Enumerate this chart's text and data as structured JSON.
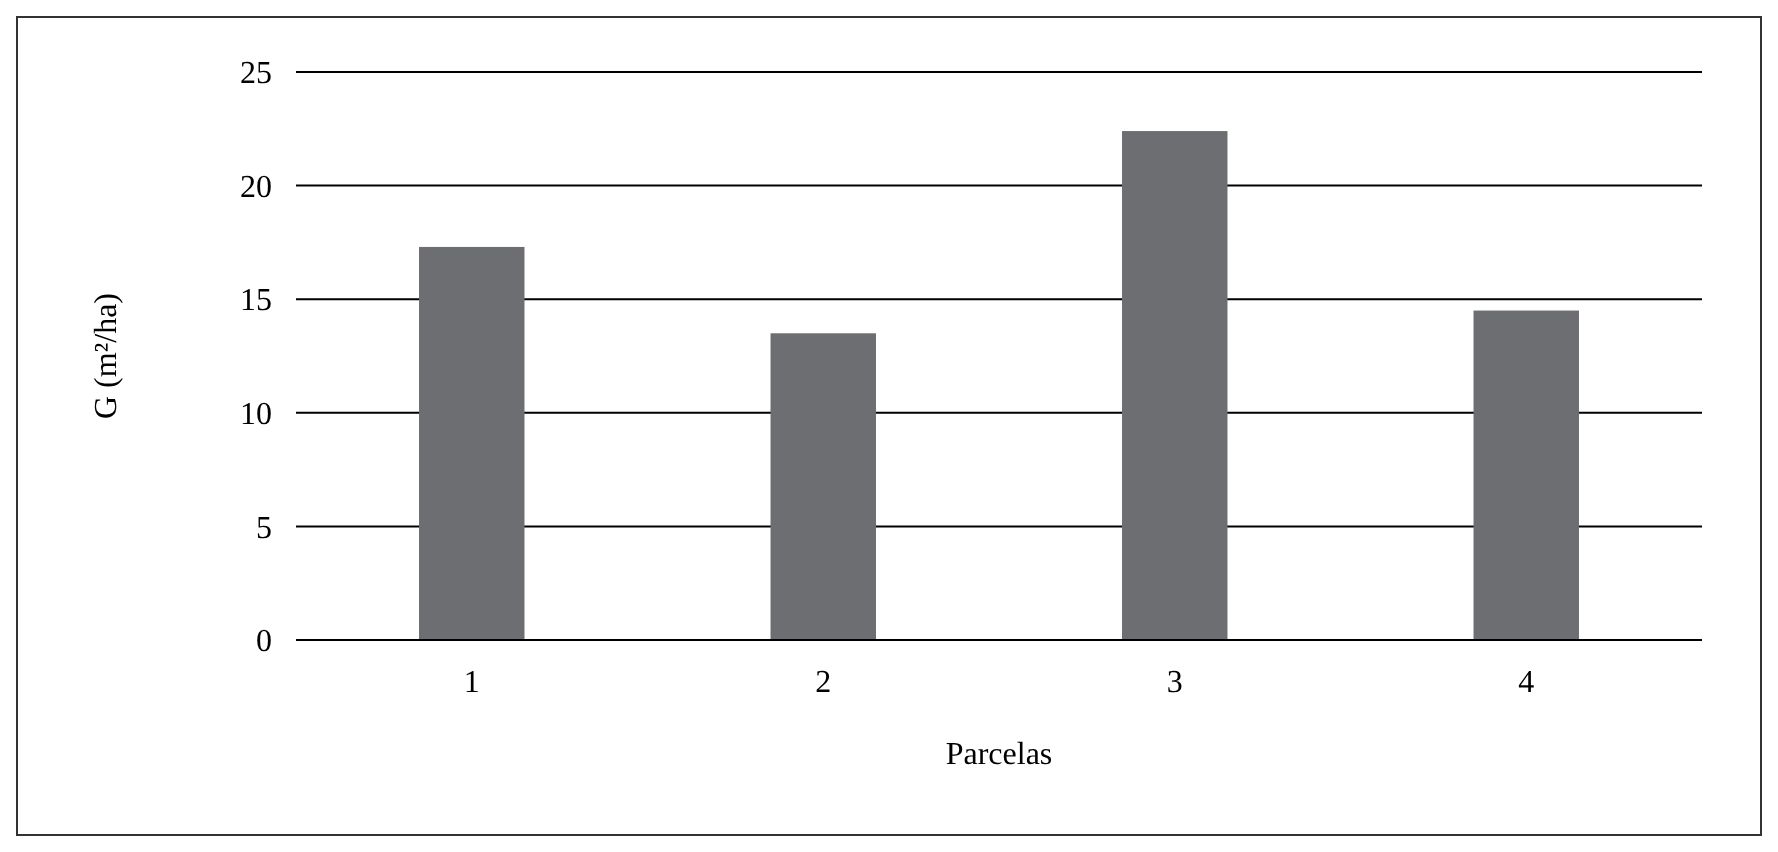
{
  "chart_data": {
    "type": "bar",
    "xlabel": "Parcelas",
    "ylabel": "G (m²/ha)",
    "categories": [
      "1",
      "2",
      "3",
      "4"
    ],
    "values": [
      17.3,
      13.5,
      22.4,
      14.5
    ],
    "color": "#6d6e71",
    "ylim": [
      0,
      25
    ],
    "yticks": [
      0,
      5,
      10,
      15,
      20,
      25
    ],
    "grid": "y"
  }
}
